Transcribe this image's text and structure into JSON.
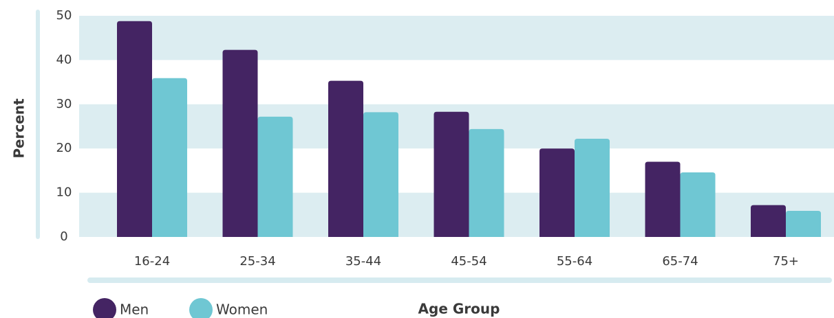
{
  "chart_data": {
    "type": "bar",
    "categories": [
      "16-24",
      "25-34",
      "35-44",
      "45-54",
      "55-64",
      "65-74",
      "75+"
    ],
    "series": [
      {
        "name": "Men",
        "values": [
          48.8,
          42.3,
          35.3,
          28.3,
          20.0,
          17.0,
          7.2
        ]
      },
      {
        "name": "Women",
        "values": [
          35.9,
          27.2,
          28.2,
          24.4,
          22.2,
          14.6,
          5.9
        ]
      }
    ],
    "xlabel": "Age Group",
    "ylabel": "Percent",
    "ylim": [
      0,
      50
    ],
    "yticks": [
      0,
      10,
      20,
      30,
      40,
      50
    ],
    "grid": "alternating horizontal bands",
    "legend_position": "bottom-left",
    "colors": {
      "Men": "#442463",
      "Women": "#6fc7d3",
      "band": "#dcedf1",
      "axis_line": "#d6ebf0",
      "text": "#3a3a3a"
    }
  }
}
